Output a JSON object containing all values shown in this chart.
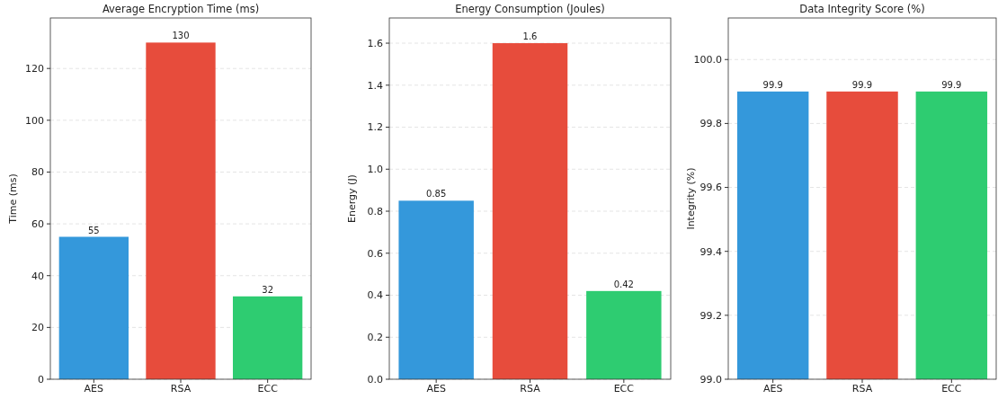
{
  "chart_data": [
    {
      "type": "bar",
      "title": "Average Encryption Time (ms)",
      "ylabel": "Time (ms)",
      "categories": [
        "AES",
        "RSA",
        "ECC"
      ],
      "values": [
        55,
        130,
        32
      ],
      "colors": [
        "#3498db",
        "#e74c3c",
        "#2ecc71"
      ],
      "ylim": [
        0,
        139.5
      ],
      "yticks": [
        0,
        20,
        40,
        60,
        80,
        100,
        120
      ],
      "grid": "y",
      "data_labels": true
    },
    {
      "type": "bar",
      "title": "Energy Consumption (Joules)",
      "ylabel": "Energy (J)",
      "categories": [
        "AES",
        "RSA",
        "ECC"
      ],
      "values": [
        0.85,
        1.6,
        0.42
      ],
      "colors": [
        "#3498db",
        "#e74c3c",
        "#2ecc71"
      ],
      "ylim": [
        0,
        1.72
      ],
      "yticks": [
        {
          "value": 0,
          "label": "0.0"
        },
        {
          "value": 0.2,
          "label": "0.2"
        },
        {
          "value": 0.4,
          "label": "0.4"
        },
        {
          "value": 0.6,
          "label": "0.6"
        },
        {
          "value": 0.8,
          "label": "0.8"
        },
        {
          "value": 1,
          "label": "1.0"
        },
        {
          "value": 1.2,
          "label": "1.2"
        },
        {
          "value": 1.4,
          "label": "1.4"
        },
        {
          "value": 1.6,
          "label": "1.6"
        }
      ],
      "grid": "y",
      "data_labels": true
    },
    {
      "type": "bar",
      "title": "Data Integrity Score (%)",
      "ylabel": "Integrity (%)",
      "categories": [
        "AES",
        "RSA",
        "ECC"
      ],
      "values": [
        99.9,
        99.9,
        99.9
      ],
      "colors": [
        "#3498db",
        "#e74c3c",
        "#2ecc71"
      ],
      "ylim": [
        99,
        100.13
      ],
      "yticks": [
        {
          "value": 99,
          "label": "99.0"
        },
        {
          "value": 99.2,
          "label": "99.2"
        },
        {
          "value": 99.4,
          "label": "99.4"
        },
        {
          "value": 99.6,
          "label": "99.6"
        },
        {
          "value": 99.8,
          "label": "99.8"
        },
        {
          "value": 100,
          "label": "100.0"
        }
      ],
      "grid": "y",
      "data_labels": true
    }
  ]
}
